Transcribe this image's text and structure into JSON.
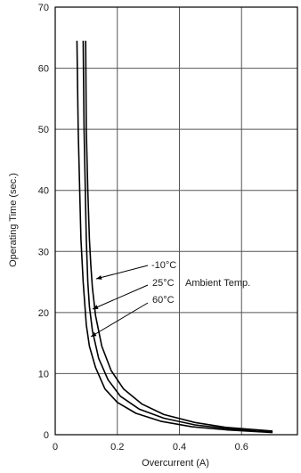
{
  "chart_data": {
    "type": "line",
    "title": "",
    "xlabel": "Overcurrent (A)",
    "ylabel": "Operating Time (sec.)",
    "xlim": [
      0,
      0.78
    ],
    "ylim": [
      0,
      70
    ],
    "x_ticks": [
      {
        "value": 0,
        "label": "0"
      },
      {
        "value": 0.2,
        "label": "0.2"
      },
      {
        "value": 0.4,
        "label": "0.4"
      },
      {
        "value": 0.6,
        "label": "0.6"
      }
    ],
    "y_ticks": [
      {
        "value": 0,
        "label": "0"
      },
      {
        "value": 10,
        "label": "10"
      },
      {
        "value": 20,
        "label": "20"
      },
      {
        "value": 30,
        "label": "30"
      },
      {
        "value": 40,
        "label": "40"
      },
      {
        "value": 50,
        "label": "50"
      },
      {
        "value": 60,
        "label": "60"
      },
      {
        "value": 70,
        "label": "70"
      }
    ],
    "grid": true,
    "legend": "none",
    "series": [
      {
        "name": "-10°C",
        "points": [
          [
            0.098,
            64.5
          ],
          [
            0.1,
            50
          ],
          [
            0.105,
            40
          ],
          [
            0.11,
            32
          ],
          [
            0.115,
            27.5
          ],
          [
            0.12,
            24
          ],
          [
            0.13,
            19.5
          ],
          [
            0.15,
            14.5
          ],
          [
            0.18,
            10.5
          ],
          [
            0.22,
            7.5
          ],
          [
            0.28,
            5
          ],
          [
            0.35,
            3.3
          ],
          [
            0.45,
            2
          ],
          [
            0.55,
            1.2
          ],
          [
            0.65,
            0.8
          ],
          [
            0.7,
            0.6
          ]
        ]
      },
      {
        "name": "25°C",
        "points": [
          [
            0.09,
            64.5
          ],
          [
            0.093,
            50
          ],
          [
            0.097,
            40
          ],
          [
            0.1,
            32
          ],
          [
            0.105,
            25
          ],
          [
            0.11,
            21
          ],
          [
            0.12,
            17
          ],
          [
            0.14,
            12.5
          ],
          [
            0.17,
            9
          ],
          [
            0.21,
            6.3
          ],
          [
            0.27,
            4.2
          ],
          [
            0.35,
            2.7
          ],
          [
            0.45,
            1.6
          ],
          [
            0.55,
            1
          ],
          [
            0.65,
            0.6
          ],
          [
            0.7,
            0.45
          ]
        ]
      },
      {
        "name": "60°C",
        "points": [
          [
            0.07,
            64.5
          ],
          [
            0.074,
            50
          ],
          [
            0.079,
            40
          ],
          [
            0.083,
            32
          ],
          [
            0.09,
            25
          ],
          [
            0.1,
            18
          ],
          [
            0.11,
            14.5
          ],
          [
            0.13,
            11
          ],
          [
            0.16,
            7.5
          ],
          [
            0.2,
            5.3
          ],
          [
            0.26,
            3.5
          ],
          [
            0.34,
            2.2
          ],
          [
            0.44,
            1.3
          ],
          [
            0.55,
            0.8
          ],
          [
            0.65,
            0.5
          ],
          [
            0.7,
            0.35
          ]
        ]
      }
    ],
    "annotations": {
      "series_labels": [
        "-10°C",
        "25°C",
        "60°C"
      ],
      "group_label": "Ambient Temp."
    }
  }
}
